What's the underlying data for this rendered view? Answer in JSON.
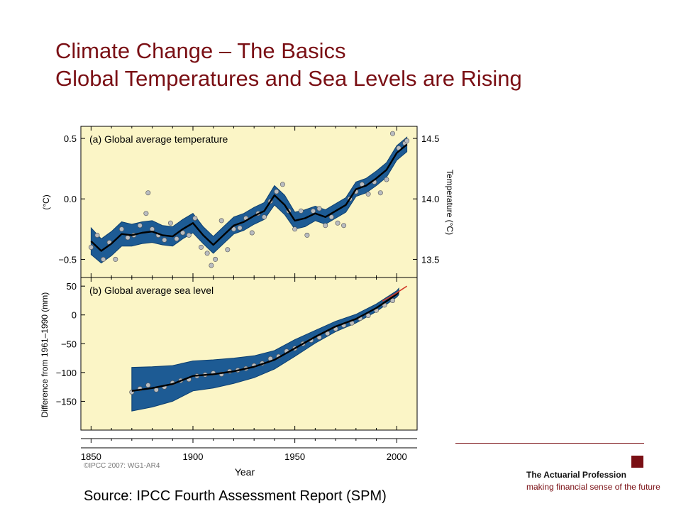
{
  "slide": {
    "title_line1": "Climate Change – The Basics",
    "title_line2": "Global Temperatures and Sea Levels are Rising",
    "source": "Source: IPCC Fourth Assessment Report (SPM)"
  },
  "logo": {
    "name": "The Actuarial Profession",
    "tagline": "making financial sense of the future",
    "accent_color": "#7a0f14"
  },
  "colors": {
    "title": "#7a0f14",
    "plot_background": "#fbf5c6",
    "band": "#1d5b94",
    "band_edge": "#0d3f70",
    "line": "#000000",
    "points": "#b9bcc0",
    "satellite_line": "#d23a2a"
  },
  "chart_data": [
    {
      "type": "line",
      "title": "(a) Global average temperature",
      "ylabel": "(°C)",
      "ylabel_right": "Temperature (°C)",
      "xlim": [
        1845,
        2010
      ],
      "ylim": [
        -0.65,
        0.6
      ],
      "right_axis_offset": 14.0,
      "yticks": [
        0.5,
        0.0,
        -0.5
      ],
      "yticks_labels": [
        "0.5",
        "0.0",
        "−0.5"
      ],
      "yticks_right": [
        14.5,
        14.0,
        13.5
      ],
      "yticks_right_labels": [
        "14.5",
        "14.0",
        "13.5"
      ],
      "grid": false,
      "series": [
        {
          "role": "smoothed",
          "x": [
            1850,
            1855,
            1860,
            1865,
            1870,
            1875,
            1880,
            1885,
            1890,
            1895,
            1900,
            1905,
            1910,
            1915,
            1920,
            1925,
            1930,
            1935,
            1940,
            1945,
            1950,
            1955,
            1960,
            1965,
            1970,
            1975,
            1980,
            1985,
            1990,
            1995,
            2000,
            2005
          ],
          "y": [
            -0.35,
            -0.43,
            -0.37,
            -0.29,
            -0.3,
            -0.28,
            -0.27,
            -0.3,
            -0.31,
            -0.25,
            -0.2,
            -0.3,
            -0.38,
            -0.3,
            -0.22,
            -0.19,
            -0.14,
            -0.1,
            0.03,
            -0.05,
            -0.18,
            -0.16,
            -0.12,
            -0.15,
            -0.1,
            -0.05,
            0.08,
            0.11,
            0.17,
            0.24,
            0.38,
            0.45
          ]
        },
        {
          "role": "uncertainty_band",
          "x": [
            1850,
            1855,
            1860,
            1865,
            1870,
            1875,
            1880,
            1885,
            1890,
            1895,
            1900,
            1905,
            1910,
            1915,
            1920,
            1925,
            1930,
            1935,
            1940,
            1945,
            1950,
            1955,
            1960,
            1965,
            1970,
            1975,
            1980,
            1985,
            1990,
            1995,
            2000,
            2005
          ],
          "low": [
            -0.46,
            -0.53,
            -0.47,
            -0.39,
            -0.39,
            -0.37,
            -0.36,
            -0.38,
            -0.39,
            -0.33,
            -0.28,
            -0.37,
            -0.45,
            -0.37,
            -0.29,
            -0.26,
            -0.21,
            -0.17,
            -0.05,
            -0.13,
            -0.25,
            -0.23,
            -0.18,
            -0.21,
            -0.16,
            -0.11,
            0.02,
            0.05,
            0.11,
            0.18,
            0.32,
            0.39
          ],
          "high": [
            -0.24,
            -0.33,
            -0.27,
            -0.19,
            -0.21,
            -0.19,
            -0.18,
            -0.22,
            -0.23,
            -0.17,
            -0.12,
            -0.23,
            -0.31,
            -0.23,
            -0.15,
            -0.12,
            -0.07,
            -0.03,
            0.11,
            0.03,
            -0.11,
            -0.09,
            -0.06,
            -0.09,
            -0.04,
            0.01,
            0.14,
            0.17,
            0.23,
            0.3,
            0.44,
            0.51
          ]
        },
        {
          "role": "annual_values",
          "x": [
            1850,
            1853,
            1856,
            1859,
            1862,
            1865,
            1868,
            1871,
            1874,
            1877,
            1878,
            1880,
            1883,
            1886,
            1889,
            1892,
            1895,
            1898,
            1901,
            1904,
            1907,
            1909,
            1911,
            1914,
            1917,
            1920,
            1923,
            1926,
            1929,
            1932,
            1935,
            1938,
            1941,
            1944,
            1947,
            1950,
            1953,
            1956,
            1959,
            1962,
            1965,
            1968,
            1971,
            1974,
            1977,
            1980,
            1983,
            1986,
            1989,
            1992,
            1995,
            1998,
            2001,
            2004,
            2005
          ],
          "y": [
            -0.4,
            -0.3,
            -0.5,
            -0.36,
            -0.5,
            -0.25,
            -0.32,
            -0.3,
            -0.22,
            -0.12,
            0.05,
            -0.25,
            -0.3,
            -0.34,
            -0.2,
            -0.33,
            -0.28,
            -0.3,
            -0.16,
            -0.4,
            -0.45,
            -0.55,
            -0.5,
            -0.18,
            -0.42,
            -0.25,
            -0.24,
            -0.16,
            -0.28,
            -0.12,
            -0.15,
            -0.02,
            0.06,
            0.12,
            -0.1,
            -0.25,
            -0.1,
            -0.3,
            -0.1,
            -0.08,
            -0.22,
            -0.15,
            -0.2,
            -0.22,
            0.0,
            0.06,
            0.12,
            0.04,
            0.14,
            0.05,
            0.16,
            0.54,
            0.42,
            0.46,
            0.48
          ]
        }
      ]
    },
    {
      "type": "line",
      "title": "(b) Global average sea level",
      "ylabel": "Difference from 1961–1990 (mm)",
      "xlabel": "Year",
      "xlim": [
        1845,
        2010
      ],
      "ylim": [
        -200,
        65
      ],
      "yticks": [
        50,
        0,
        -50,
        -100,
        -150
      ],
      "yticks_labels": [
        "50",
        "0",
        "−50",
        "−100",
        "−150"
      ],
      "xticks": [
        1850,
        1900,
        1950,
        2000
      ],
      "xticks_labels": [
        "1850",
        "1900",
        "1950",
        "2000"
      ],
      "grid": false,
      "series": [
        {
          "role": "smoothed",
          "x": [
            1870,
            1880,
            1890,
            1900,
            1910,
            1920,
            1930,
            1940,
            1950,
            1960,
            1970,
            1980,
            1990,
            2000,
            2001
          ],
          "y": [
            -132,
            -127,
            -120,
            -106,
            -103,
            -98,
            -90,
            -78,
            -58,
            -38,
            -20,
            -7,
            12,
            36,
            40
          ]
        },
        {
          "role": "uncertainty_band",
          "x": [
            1870,
            1880,
            1890,
            1900,
            1910,
            1920,
            1930,
            1940,
            1950,
            1960,
            1970,
            1980,
            1990,
            2000,
            2001
          ],
          "low": [
            -167,
            -160,
            -150,
            -132,
            -127,
            -119,
            -109,
            -94,
            -72,
            -49,
            -29,
            -14,
            6,
            31,
            35
          ],
          "high": [
            -91,
            -90,
            -88,
            -80,
            -78,
            -75,
            -71,
            -62,
            -43,
            -27,
            -11,
            1,
            19,
            42,
            46
          ]
        },
        {
          "role": "annual_values",
          "x": [
            1870,
            1874,
            1878,
            1882,
            1886,
            1890,
            1894,
            1898,
            1902,
            1906,
            1910,
            1914,
            1918,
            1922,
            1926,
            1930,
            1934,
            1938,
            1942,
            1946,
            1950,
            1954,
            1958,
            1962,
            1966,
            1970,
            1974,
            1978,
            1982,
            1986,
            1990,
            1994,
            1998
          ],
          "y": [
            -134,
            -128,
            -122,
            -130,
            -125,
            -118,
            -114,
            -112,
            -106,
            -104,
            -101,
            -103,
            -98,
            -96,
            -93,
            -88,
            -84,
            -76,
            -72,
            -63,
            -58,
            -50,
            -44,
            -39,
            -32,
            -24,
            -18,
            -14,
            -6,
            -1,
            8,
            17,
            25
          ]
        },
        {
          "role": "satellite_altimetry",
          "x": [
            1993,
            1996,
            1999,
            2002,
            2005
          ],
          "y": [
            24,
            30,
            36,
            43,
            50
          ]
        }
      ]
    }
  ],
  "figure_credit": "©IPCC 2007: WG1-AR4"
}
